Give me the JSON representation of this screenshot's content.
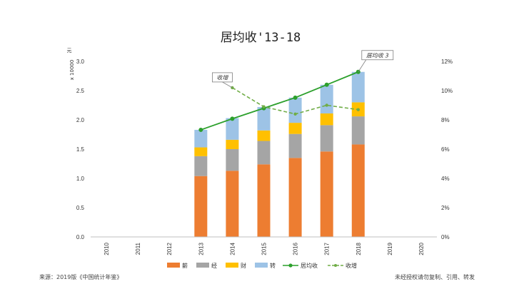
{
  "chart_data": {
    "type": "bar",
    "stacked": true,
    "title": "居均收'13-18",
    "y_unit_label": "元",
    "y_multiplier_label": "x 10000",
    "categories": [
      "2010",
      "2011",
      "2012",
      "2013",
      "2014",
      "2015",
      "2016",
      "2017",
      "2018",
      "2019",
      "2020"
    ],
    "ylim": [
      0,
      3.0
    ],
    "yticks": [
      "0.0",
      "0.5",
      "1.0",
      "1.5",
      "2.0",
      "2.5",
      "3.0"
    ],
    "y2lim": [
      0,
      12
    ],
    "y2ticks": [
      "0%",
      "2%",
      "4%",
      "6%",
      "8%",
      "10%",
      "12%"
    ],
    "series": [
      {
        "name": "薪",
        "color": "#ED7D31",
        "values": [
          null,
          null,
          null,
          1.04,
          1.13,
          1.24,
          1.35,
          1.46,
          1.58,
          null,
          null
        ]
      },
      {
        "name": "经",
        "color": "#A5A5A5",
        "values": [
          null,
          null,
          null,
          0.34,
          0.37,
          0.4,
          0.41,
          0.45,
          0.48,
          null,
          null
        ]
      },
      {
        "name": "财",
        "color": "#FFC000",
        "values": [
          null,
          null,
          null,
          0.15,
          0.16,
          0.18,
          0.19,
          0.2,
          0.24,
          null,
          null
        ]
      },
      {
        "name": "转",
        "color": "#9DC3E6",
        "values": [
          null,
          null,
          null,
          0.3,
          0.37,
          0.4,
          0.43,
          0.49,
          0.52,
          null,
          null
        ]
      }
    ],
    "line_series": [
      {
        "name": "居均收",
        "color": "#2CA02C",
        "axis": "left",
        "style": "solid",
        "values": [
          null,
          null,
          null,
          1.83,
          2.02,
          2.2,
          2.38,
          2.6,
          2.82,
          null,
          null
        ]
      },
      {
        "name": "收增",
        "color": "#70AD47",
        "axis": "right",
        "style": "dashed",
        "values": [
          null,
          null,
          null,
          null,
          10.2,
          8.9,
          8.4,
          9.0,
          8.7,
          null,
          null
        ]
      }
    ],
    "annotations": [
      {
        "text": "居均收 3",
        "target_series": "居均收",
        "target_category": "2018"
      },
      {
        "text": "收增",
        "target_series": "收增",
        "target_category": "2014"
      }
    ],
    "legend": [
      "薪",
      "经",
      "财",
      "转",
      "居均收",
      "收增"
    ],
    "legend_position": "bottom"
  },
  "footer": {
    "source": "来源：2019版《中国统计年鉴》",
    "rights": "未经授权请勿复制、引用、转发"
  }
}
